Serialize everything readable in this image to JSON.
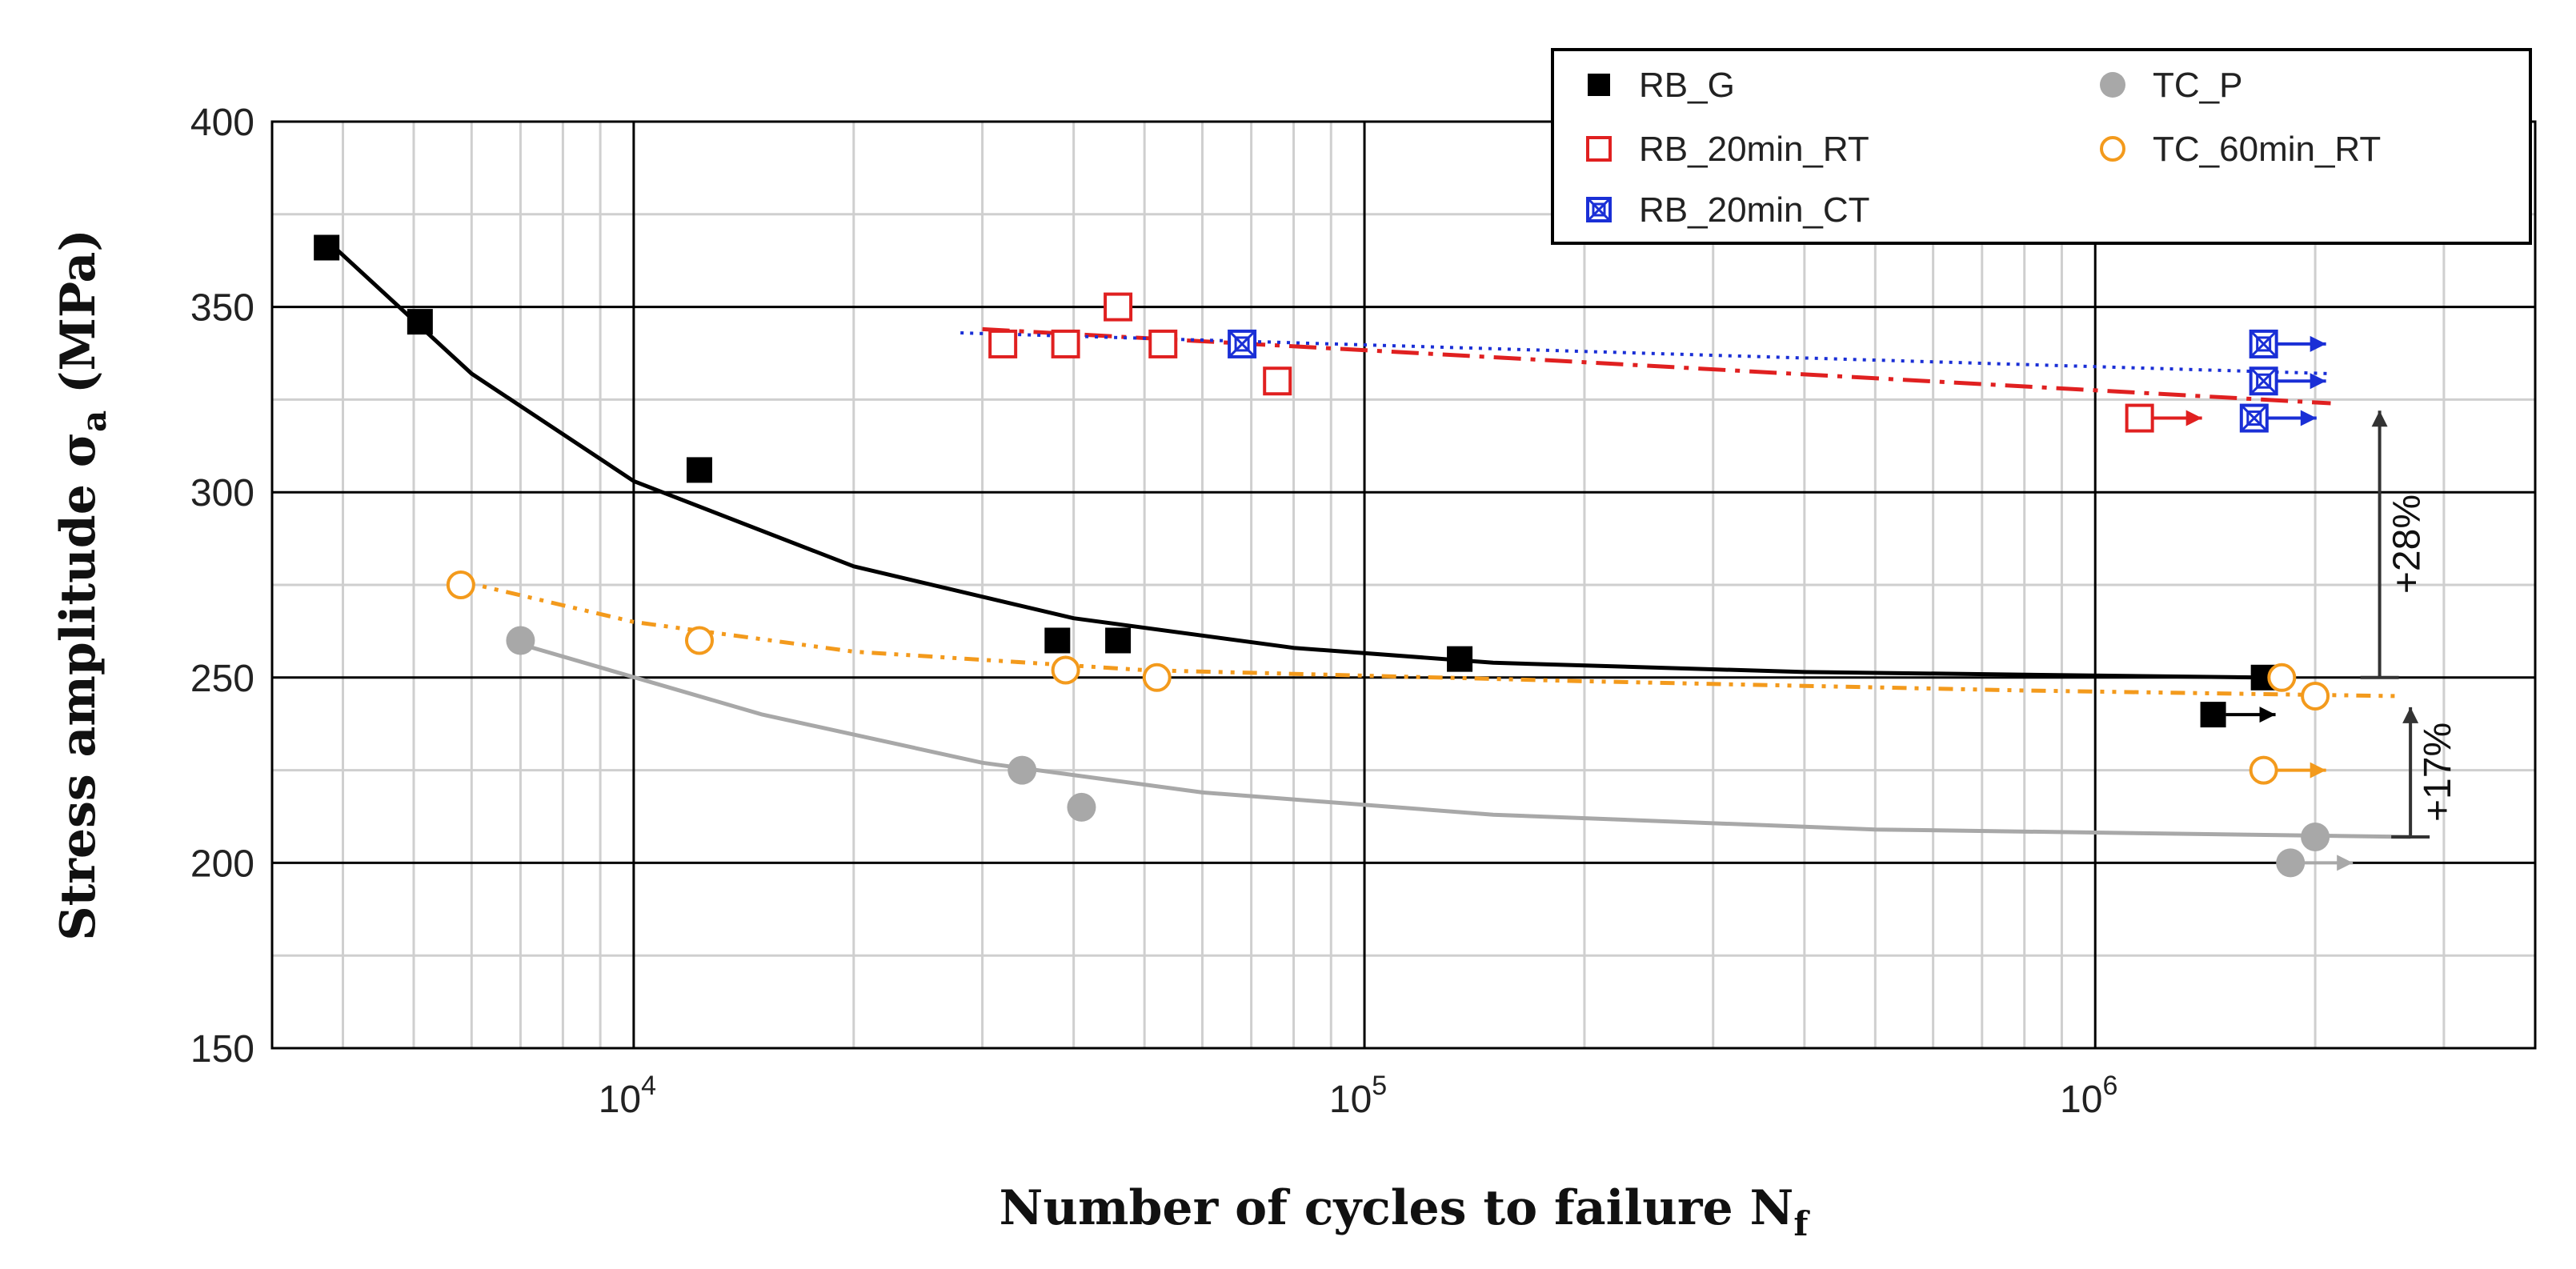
{
  "chart_data": {
    "type": "scatter",
    "xscale": "log",
    "xlim": [
      3200,
      4000000
    ],
    "ylim": [
      150,
      400
    ],
    "xlabel": "Number of cycles to failure N",
    "xlabel_sub": "f",
    "ylabel": "Stress amplitude σ",
    "ylabel_sub": "a",
    "ylabel_unit": "(MPa)",
    "yticks": [
      150,
      200,
      250,
      300,
      350,
      400
    ],
    "xticks": [
      {
        "value": 10000,
        "base": "10",
        "exp": "4"
      },
      {
        "value": 100000,
        "base": "10",
        "exp": "5"
      },
      {
        "value": 1000000,
        "base": "10",
        "exp": "6"
      }
    ],
    "grid": true,
    "legend_position": "top-right",
    "series": [
      {
        "name": "RB_G",
        "marker": "square-filled",
        "color": "#000000",
        "line": "solid",
        "points": [
          [
            3800,
            366
          ],
          [
            5100,
            346
          ],
          [
            12300,
            306
          ],
          [
            38000,
            260
          ],
          [
            46000,
            260
          ],
          [
            135000,
            255
          ],
          [
            1700000,
            250
          ]
        ],
        "runouts": [
          [
            1450000,
            240
          ]
        ],
        "fit": [
          [
            3800,
            368
          ],
          [
            6000,
            332
          ],
          [
            10000,
            303
          ],
          [
            20000,
            280
          ],
          [
            40000,
            266
          ],
          [
            80000,
            258
          ],
          [
            150000,
            254
          ],
          [
            400000,
            251.5
          ],
          [
            1700000,
            250
          ]
        ]
      },
      {
        "name": "RB_20min_RT",
        "marker": "square-open",
        "color": "#e02020",
        "line": "dash-dot",
        "points": [
          [
            32000,
            340
          ],
          [
            39000,
            340
          ],
          [
            46000,
            350
          ],
          [
            53000,
            340
          ],
          [
            76000,
            330
          ]
        ],
        "runouts": [
          [
            1150000,
            320
          ]
        ],
        "fit": [
          [
            30000,
            344
          ],
          [
            2100000,
            324
          ]
        ]
      },
      {
        "name": "RB_20min_CT",
        "marker": "square-cross",
        "color": "#1a2fd6",
        "line": "dotted",
        "points": [
          [
            68000,
            340
          ]
        ],
        "runouts": [
          [
            1700000,
            340
          ],
          [
            1700000,
            330
          ],
          [
            1650000,
            320
          ]
        ],
        "fit": [
          [
            28000,
            343
          ],
          [
            2100000,
            332
          ]
        ]
      },
      {
        "name": "TC_P",
        "marker": "circle-filled",
        "color": "#a8a8a8",
        "line": "solid",
        "points": [
          [
            7000,
            260
          ],
          [
            34000,
            225
          ],
          [
            41000,
            215
          ],
          [
            2000000,
            207
          ]
        ],
        "runouts": [
          [
            1850000,
            200
          ]
        ],
        "fit": [
          [
            7000,
            259
          ],
          [
            15000,
            240
          ],
          [
            30000,
            227
          ],
          [
            60000,
            219
          ],
          [
            150000,
            213
          ],
          [
            500000,
            209
          ],
          [
            2700000,
            207
          ]
        ]
      },
      {
        "name": "TC_60min_RT",
        "marker": "circle-open",
        "color": "#f39a1c",
        "line": "dash-dot-dot",
        "points": [
          [
            5800,
            275
          ],
          [
            12300,
            260
          ],
          [
            39000,
            252
          ],
          [
            52000,
            250
          ],
          [
            1800000,
            250
          ],
          [
            2000000,
            245
          ]
        ],
        "runouts": [
          [
            1700000,
            225
          ]
        ],
        "fit": [
          [
            5800,
            276
          ],
          [
            10000,
            265
          ],
          [
            20000,
            257
          ],
          [
            50000,
            252
          ],
          [
            200000,
            249
          ],
          [
            800000,
            246.5
          ],
          [
            2600000,
            245
          ]
        ]
      }
    ],
    "annotations": [
      {
        "text": "+28%",
        "x": 2450000,
        "y_from": 250,
        "y_to": 322
      },
      {
        "text": "+17%",
        "x": 2700000,
        "y_from": 207,
        "y_to": 242
      }
    ]
  },
  "legend_items": [
    {
      "label": "RB_G",
      "marker": "square-filled",
      "color": "#000000"
    },
    {
      "label": "RB_20min_RT",
      "marker": "square-open",
      "color": "#e02020"
    },
    {
      "label": "RB_20min_CT",
      "marker": "square-cross",
      "color": "#1a2fd6"
    },
    {
      "label": "TC_P",
      "marker": "circle-filled",
      "color": "#a8a8a8"
    },
    {
      "label": "TC_60min_RT",
      "marker": "circle-open",
      "color": "#f39a1c"
    }
  ]
}
